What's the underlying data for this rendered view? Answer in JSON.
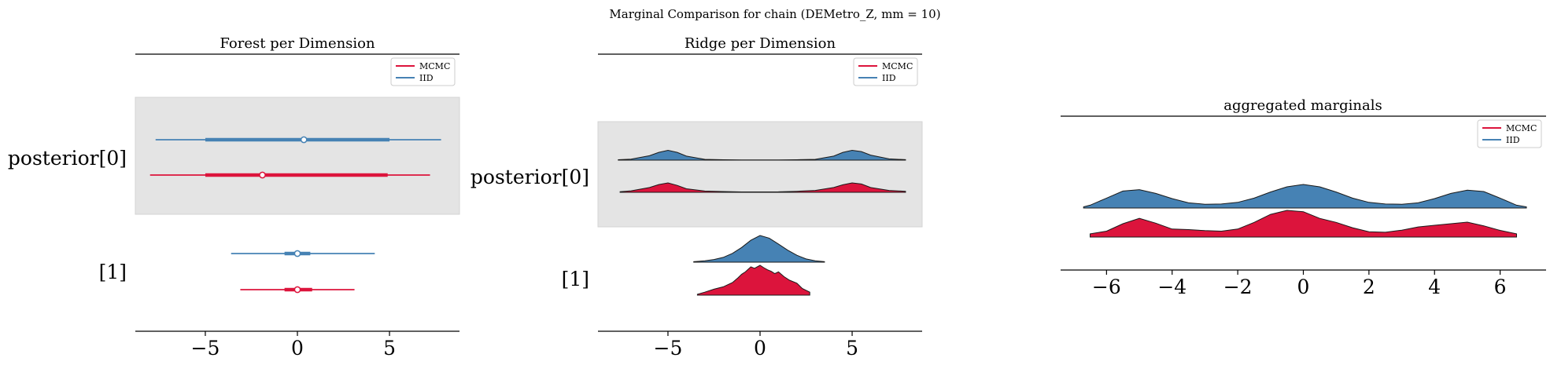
{
  "suptitle": "Marginal Comparison for chain (DEMetro_Z, mm = 10)",
  "colors": {
    "mcmc": "#dc143c",
    "iid": "#4682b4",
    "band": "#e4e4e4"
  },
  "legend": [
    "MCMC",
    "IID"
  ],
  "chart_data": [
    {
      "type": "forest",
      "title": "Forest per Dimension",
      "xlim": [
        -8.8,
        8.8
      ],
      "xticks": [
        -5,
        0,
        5
      ],
      "xtick_labels": [
        "−5",
        "0",
        "5"
      ],
      "row_labels": [
        "posterior[0]",
        "[1]"
      ],
      "legend_position": "top-right",
      "series": [
        {
          "name": "IID",
          "rows": [
            {
              "hdi94": [
                -7.7,
                7.8
              ],
              "iqr": [
                -5.0,
                5.0
              ],
              "median": 0.35
            },
            {
              "hdi94": [
                -3.6,
                4.2
              ],
              "iqr": [
                -0.7,
                0.7
              ],
              "median": 0.0
            }
          ]
        },
        {
          "name": "MCMC",
          "rows": [
            {
              "hdi94": [
                -8.0,
                7.2
              ],
              "iqr": [
                -5.0,
                4.9
              ],
              "median": -1.9
            },
            {
              "hdi94": [
                -3.1,
                3.1
              ],
              "iqr": [
                -0.7,
                0.8
              ],
              "median": 0.0
            }
          ]
        }
      ]
    },
    {
      "type": "ridge",
      "title": "Ridge per Dimension",
      "xlim": [
        -8.8,
        8.8
      ],
      "xticks": [
        -5,
        0,
        5
      ],
      "xtick_labels": [
        "−5",
        "0",
        "5"
      ],
      "row_labels": [
        "posterior[0]",
        "[1]"
      ],
      "legend_position": "top-right",
      "series": [
        {
          "name": "IID",
          "rows": [
            {
              "x": [
                -7.7,
                -7,
                -6,
                -5.5,
                -5,
                -4.5,
                -4,
                -3,
                -2,
                -1,
                0,
                1,
                2,
                3,
                4,
                4.5,
                5,
                5.5,
                6,
                7,
                7.9
              ],
              "density": [
                0.03,
                0.08,
                0.35,
                0.62,
                0.78,
                0.62,
                0.32,
                0.06,
                0.03,
                0.02,
                0.02,
                0.02,
                0.03,
                0.06,
                0.32,
                0.62,
                0.78,
                0.68,
                0.4,
                0.1,
                0.04
              ]
            },
            {
              "x": [
                -3.6,
                -3,
                -2.5,
                -2,
                -1.5,
                -1,
                -0.5,
                0,
                0.5,
                1,
                1.5,
                2,
                2.5,
                3,
                3.5
              ],
              "density": [
                0.02,
                0.05,
                0.1,
                0.18,
                0.33,
                0.55,
                0.82,
                1.0,
                0.9,
                0.68,
                0.45,
                0.26,
                0.12,
                0.05,
                0.02
              ]
            }
          ]
        },
        {
          "name": "MCMC",
          "rows": [
            {
              "x": [
                -7.6,
                -7,
                -6,
                -5.5,
                -5,
                -4.5,
                -4,
                -3,
                -2,
                -1,
                0,
                1,
                2,
                3,
                4,
                4.5,
                5,
                5.5,
                6,
                7,
                7.9
              ],
              "density": [
                0.05,
                0.12,
                0.38,
                0.62,
                0.75,
                0.55,
                0.28,
                0.1,
                0.06,
                0.03,
                0.03,
                0.04,
                0.08,
                0.15,
                0.38,
                0.6,
                0.75,
                0.66,
                0.38,
                0.15,
                0.08
              ]
            },
            {
              "x": [
                -3.4,
                -3,
                -2.5,
                -2,
                -1.5,
                -1.2,
                -1,
                -0.8,
                -0.5,
                -0.3,
                0,
                0.2,
                0.4,
                0.6,
                0.8,
                1,
                1.3,
                1.6,
                2,
                2.3,
                2.7
              ],
              "density": [
                0.03,
                0.1,
                0.2,
                0.28,
                0.42,
                0.58,
                0.7,
                0.78,
                0.95,
                0.9,
                1.0,
                0.92,
                0.85,
                0.8,
                0.72,
                0.78,
                0.62,
                0.5,
                0.4,
                0.22,
                0.1
              ]
            }
          ]
        }
      ]
    },
    {
      "type": "ridge",
      "title": "aggregated marginals",
      "xlim": [
        -7.4,
        7.4
      ],
      "xticks": [
        -6,
        -4,
        -2,
        0,
        2,
        4,
        6
      ],
      "xtick_labels": [
        "−6",
        "−4",
        "−2",
        "0",
        "2",
        "4",
        "6"
      ],
      "legend_position": "top-right",
      "series": [
        {
          "name": "IID",
          "x": [
            -6.7,
            -6.5,
            -6,
            -5.5,
            -5,
            -4.5,
            -4,
            -3.5,
            -3,
            -2.5,
            -2,
            -1.5,
            -1,
            -0.5,
            0,
            0.5,
            1,
            1.5,
            2,
            2.5,
            3,
            3.5,
            4,
            4.5,
            5,
            5.5,
            6,
            6.5,
            6.8
          ],
          "density": [
            0.05,
            0.12,
            0.42,
            0.72,
            0.78,
            0.62,
            0.4,
            0.22,
            0.16,
            0.17,
            0.24,
            0.42,
            0.68,
            0.9,
            1.0,
            0.9,
            0.68,
            0.42,
            0.24,
            0.17,
            0.16,
            0.22,
            0.4,
            0.62,
            0.76,
            0.7,
            0.42,
            0.12,
            0.05
          ]
        },
        {
          "name": "MCMC",
          "x": [
            -6.5,
            -6,
            -5.5,
            -5,
            -4.5,
            -4,
            -3.5,
            -3,
            -2.5,
            -2,
            -1.5,
            -1,
            -0.5,
            0,
            0.5,
            1,
            1.5,
            2,
            2.5,
            3,
            3.5,
            4,
            4.5,
            5,
            5.5,
            6,
            6.5
          ],
          "density": [
            0.12,
            0.22,
            0.5,
            0.7,
            0.52,
            0.3,
            0.28,
            0.24,
            0.22,
            0.3,
            0.55,
            0.85,
            1.0,
            0.95,
            0.7,
            0.55,
            0.35,
            0.2,
            0.18,
            0.26,
            0.38,
            0.44,
            0.5,
            0.56,
            0.42,
            0.25,
            0.12
          ]
        }
      ]
    }
  ]
}
